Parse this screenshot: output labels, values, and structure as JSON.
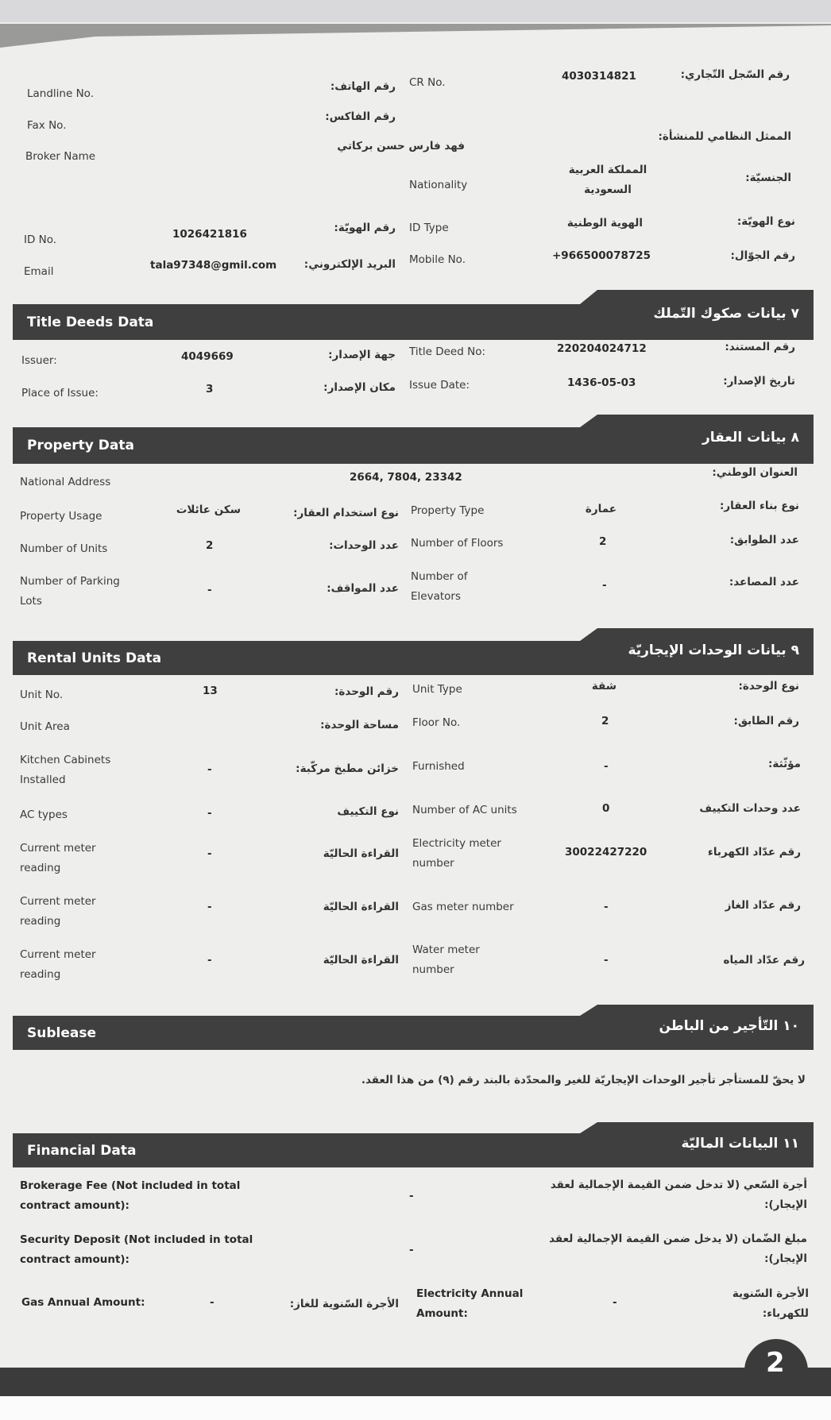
{
  "top": {
    "cr": {
      "en": "CR No.",
      "ar": "رقم السّجل التّجاري:",
      "value": "4030314821"
    },
    "landline": {
      "en": "Landline No.",
      "ar": "رقم الهاتف:"
    },
    "fax": {
      "en": "Fax No.",
      "ar": "رقم الفاكس:"
    },
    "broker": {
      "en": "Broker Name",
      "value": "فهد فارس حسن بركاتي"
    },
    "representative": {
      "ar": "الممثل النظامي للمنشأة:"
    },
    "nationality": {
      "en": "Nationality",
      "ar": "الجنسيّة:",
      "value": "المملكة العربية السعودية"
    },
    "id_type": {
      "en": "ID Type",
      "ar": "نوع الهويّة:",
      "value": "الهوية الوطنية"
    },
    "id_no": {
      "en": "ID No.",
      "ar": "رقم الهويّة:",
      "value": "1026421816"
    },
    "mobile": {
      "en": "Mobile No.",
      "ar": "رقم الجوّال:",
      "value": "+966500078725"
    },
    "email": {
      "en": "Email",
      "ar": "البريد الإلكتروني:",
      "value": "tala97348@gmil.com"
    }
  },
  "title_deeds": {
    "title_en": "Title Deeds Data",
    "title_ar": "٧ بيانات صكوك التّملك",
    "issuer": {
      "en": "Issuer:",
      "value": "4049669",
      "ar": "جهة الإصدار:"
    },
    "title_deed_no": {
      "en": "Title Deed No:",
      "value": "220204024712",
      "ar": "رقم المستند:"
    },
    "place_of_issue": {
      "en": "Place of Issue:",
      "value": "3",
      "ar": "مكان الإصدار:"
    },
    "issue_date": {
      "en": "Issue Date:",
      "value": "1436-05-03",
      "ar": "تاريخ الإصدار:"
    }
  },
  "property": {
    "title_en": "Property Data",
    "title_ar": "٨ بيانات العقار",
    "national_address": {
      "en": "National Address",
      "value": "2664, 7804, 23342",
      "ar": "العنوان الوطني:"
    },
    "usage": {
      "en": "Property Usage",
      "value": "سكن عائلات",
      "ar": "نوع استخدام العقار:"
    },
    "type": {
      "en": "Property Type",
      "value": "عمارة",
      "ar": "نوع بناء العقار:"
    },
    "units": {
      "en": "Number of Units",
      "value": "2",
      "ar": "عدد الوحدات:"
    },
    "floors": {
      "en": "Number of Floors",
      "value": "2",
      "ar": "عدد الطوابق:"
    },
    "parking": {
      "en": "Number of Parking Lots",
      "value": "-",
      "ar": "عدد المواقف:"
    },
    "elevators": {
      "en": "Number of Elevators",
      "value": "-",
      "ar": "عدد المصاعد:"
    }
  },
  "rental_units": {
    "title_en": "Rental Units Data",
    "title_ar": "٩ بيانات الوحدات الإيجاريّة",
    "unit_no": {
      "en": "Unit No.",
      "value": "13",
      "ar": "رقم الوحدة:"
    },
    "unit_type": {
      "en": "Unit Type",
      "value": "شقة",
      "ar": "نوع الوحدة:"
    },
    "unit_area": {
      "en": "Unit Area",
      "ar": "مساحة الوحدة:"
    },
    "floor_no": {
      "en": "Floor No.",
      "value": "2",
      "ar": "رقم الطابق:"
    },
    "kitchen": {
      "en": "Kitchen Cabinets Installed",
      "value": "-",
      "ar": "خزائن مطبخ مركّبة:"
    },
    "furnished": {
      "en": "Furnished",
      "value": "-",
      "ar": "مؤثّثة:"
    },
    "ac_types": {
      "en": "AC types",
      "value": "-",
      "ar": "نوع التكييف"
    },
    "ac_units": {
      "en": "Number of AC units",
      "value": "0",
      "ar": "عدد وحدات التكييف"
    },
    "elec_reading": {
      "en": "Current meter reading",
      "value": "-",
      "ar": "القراءة الحاليّة"
    },
    "elec_meter": {
      "en": "Electricity meter number",
      "value": "30022427220",
      "ar": "رقم عدّاد الكهرباء"
    },
    "gas_reading": {
      "en": "Current meter reading",
      "value": "-",
      "ar": "القراءة الحاليّة"
    },
    "gas_meter": {
      "en": "Gas meter number",
      "value": "-",
      "ar": "رقم عدّاد الغاز"
    },
    "water_reading": {
      "en": "Current meter reading",
      "value": "-",
      "ar": "القراءة الحاليّة"
    },
    "water_meter": {
      "en": "Water meter number",
      "value": "-",
      "ar": "رقم عدّاد المياه"
    }
  },
  "sublease": {
    "title_en": "Sublease",
    "title_ar": "١٠ التّأجير من الباطن",
    "text": "لا يحقّ للمستأجر تأجير الوحدات الإيجاريّة للغير والمحدّدة بالبند رقم (٩) من هذا العقد."
  },
  "financial": {
    "title_en": "Financial Data",
    "title_ar": "١١ البيانات الماليّة",
    "brokerage": {
      "en": "Brokerage Fee (Not included in total contract amount):",
      "value": "-",
      "ar": "أجرة السّعي (لا تدخل ضمن القيمة الإجمالية لعقد الإيجار):"
    },
    "deposit": {
      "en": "Security Deposit (Not included in total contract amount):",
      "value": "-",
      "ar": "مبلغ الضّمان (لا يدخل ضمن القيمة الإجمالية لعقد الإيجار):"
    },
    "gas_annual": {
      "en": "Gas Annual Amount:",
      "value": "-",
      "ar": "الأجرة السّنوية للغاز:"
    },
    "elec_annual": {
      "en": "Electricity Annual Amount:",
      "value": "-",
      "ar": "الأجرة السّنوية للكهرباء:"
    }
  },
  "page_number": "2"
}
